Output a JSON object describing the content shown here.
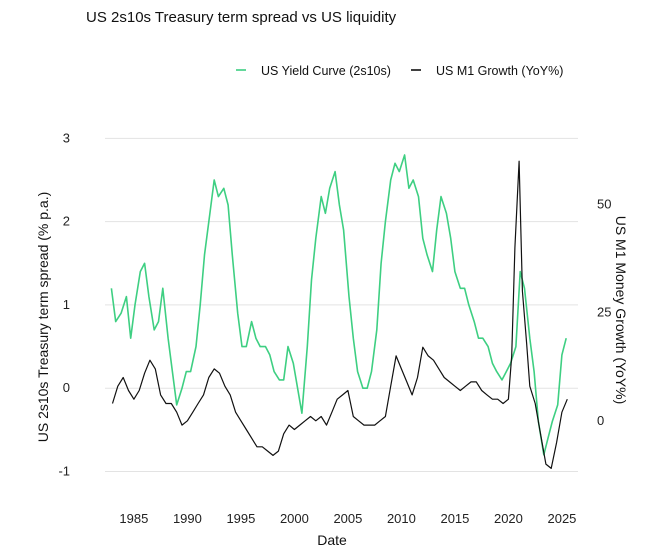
{
  "colors": {
    "green": "#3ecf82",
    "black": "#111111",
    "grid": "#e3e3e3"
  },
  "chart_data": {
    "type": "line",
    "title": "US 2s10s Treasury term spread vs US liquidity",
    "xlabel": "Date",
    "ylabel_left": "US 2s10s Treasury term spread (% p.a.)",
    "ylabel_right": "US M1 Money Growth (YoY%)",
    "xlim": [
      1982.3,
      2026.5
    ],
    "ylim_left": [
      -1.15,
      3.1
    ],
    "ylim_right": [
      -14.6,
      67.2
    ],
    "x_ticks": [
      1985,
      1990,
      1995,
      2000,
      2005,
      2010,
      2015,
      2020,
      2025
    ],
    "y_ticks_left": [
      -1,
      0,
      1,
      2,
      3
    ],
    "y_ticks_right": [
      0,
      25,
      50
    ],
    "grid": "horizontal",
    "legend_position": "top-right",
    "series": [
      {
        "name": "US Yield Curve (2s10s)",
        "axis": "left",
        "x": [
          1982.9,
          1983.3,
          1983.8,
          1984.3,
          1984.7,
          1985.1,
          1985.6,
          1986.0,
          1986.4,
          1986.9,
          1987.3,
          1987.7,
          1988.2,
          1988.6,
          1989.0,
          1989.5,
          1989.9,
          1990.3,
          1990.8,
          1991.2,
          1991.6,
          1992.1,
          1992.5,
          1992.9,
          1993.4,
          1993.8,
          1994.2,
          1994.7,
          1995.1,
          1995.5,
          1996.0,
          1996.4,
          1996.8,
          1997.3,
          1997.7,
          1998.1,
          1998.6,
          1999.0,
          1999.4,
          1999.9,
          2000.3,
          2000.7,
          2001.2,
          2001.6,
          2002.0,
          2002.5,
          2002.9,
          2003.3,
          2003.8,
          2004.2,
          2004.6,
          2005.1,
          2005.5,
          2005.9,
          2006.4,
          2006.8,
          2007.2,
          2007.7,
          2008.1,
          2008.5,
          2009.0,
          2009.4,
          2009.8,
          2010.3,
          2010.7,
          2011.1,
          2011.6,
          2012.0,
          2012.4,
          2012.9,
          2013.3,
          2013.7,
          2014.2,
          2014.6,
          2015.0,
          2015.5,
          2015.9,
          2016.3,
          2016.8,
          2017.2,
          2017.6,
          2018.1,
          2018.5,
          2018.9,
          2019.4,
          2019.8,
          2020.2,
          2020.7,
          2021.1,
          2021.5,
          2022.0,
          2022.4,
          2022.8,
          2023.3,
          2023.7,
          2024.1,
          2024.6,
          2025.0,
          2025.4
        ],
        "values": [
          1.2,
          0.8,
          0.9,
          1.1,
          0.6,
          1.0,
          1.4,
          1.5,
          1.1,
          0.7,
          0.8,
          1.2,
          0.6,
          0.2,
          -0.2,
          0.0,
          0.2,
          0.2,
          0.5,
          1.0,
          1.6,
          2.1,
          2.5,
          2.3,
          2.4,
          2.2,
          1.6,
          0.9,
          0.5,
          0.5,
          0.8,
          0.6,
          0.5,
          0.5,
          0.4,
          0.2,
          0.1,
          0.1,
          0.5,
          0.3,
          0.0,
          -0.3,
          0.5,
          1.3,
          1.8,
          2.3,
          2.1,
          2.4,
          2.6,
          2.2,
          1.9,
          1.1,
          0.6,
          0.2,
          0.0,
          0.0,
          0.2,
          0.7,
          1.5,
          2.0,
          2.5,
          2.7,
          2.6,
          2.8,
          2.4,
          2.5,
          2.3,
          1.8,
          1.6,
          1.4,
          1.9,
          2.3,
          2.1,
          1.8,
          1.4,
          1.2,
          1.2,
          1.0,
          0.8,
          0.6,
          0.6,
          0.5,
          0.3,
          0.2,
          0.1,
          0.2,
          0.3,
          0.5,
          1.4,
          1.2,
          0.6,
          0.2,
          -0.4,
          -0.8,
          -0.6,
          -0.4,
          -0.2,
          0.4,
          0.6
        ]
      },
      {
        "name": "US M1 Growth (YoY%)",
        "axis": "right",
        "x": [
          1983.0,
          1983.5,
          1984.0,
          1984.5,
          1985.0,
          1985.5,
          1986.0,
          1986.5,
          1987.0,
          1987.5,
          1988.0,
          1988.5,
          1989.0,
          1989.5,
          1990.0,
          1990.5,
          1991.0,
          1991.5,
          1992.0,
          1992.5,
          1993.0,
          1993.5,
          1994.0,
          1994.5,
          1995.0,
          1995.5,
          1996.0,
          1996.5,
          1997.0,
          1997.5,
          1998.0,
          1998.5,
          1999.0,
          1999.5,
          2000.0,
          2000.5,
          2001.0,
          2001.5,
          2002.0,
          2002.5,
          2003.0,
          2003.5,
          2004.0,
          2004.5,
          2005.0,
          2005.5,
          2006.0,
          2006.5,
          2007.0,
          2007.5,
          2008.0,
          2008.5,
          2009.0,
          2009.5,
          2010.0,
          2010.5,
          2011.0,
          2011.5,
          2012.0,
          2012.5,
          2013.0,
          2013.5,
          2014.0,
          2014.5,
          2015.0,
          2015.5,
          2016.0,
          2016.5,
          2017.0,
          2017.5,
          2018.0,
          2018.5,
          2019.0,
          2019.5,
          2020.0,
          2020.3,
          2020.6,
          2021.0,
          2021.3,
          2021.7,
          2022.0,
          2022.5,
          2023.0,
          2023.5,
          2024.0,
          2024.5,
          2025.0,
          2025.5
        ],
        "values": [
          4,
          8,
          10,
          7,
          5,
          7,
          11,
          14,
          12,
          6,
          4,
          4,
          2,
          -1,
          0,
          2,
          4,
          6,
          10,
          12,
          11,
          8,
          6,
          2,
          0,
          -2,
          -4,
          -6,
          -6,
          -7,
          -8,
          -7,
          -3,
          -1,
          -2,
          -1,
          0,
          1,
          0,
          1,
          -1,
          2,
          5,
          6,
          7,
          1,
          0,
          -1,
          -1,
          -1,
          0,
          1,
          8,
          15,
          12,
          9,
          6,
          10,
          17,
          15,
          14,
          12,
          10,
          9,
          8,
          7,
          8,
          9,
          9,
          7,
          6,
          5,
          5,
          4,
          5,
          15,
          40,
          60,
          30,
          18,
          8,
          4,
          -3,
          -10,
          -11,
          -5,
          2,
          5
        ]
      }
    ]
  }
}
